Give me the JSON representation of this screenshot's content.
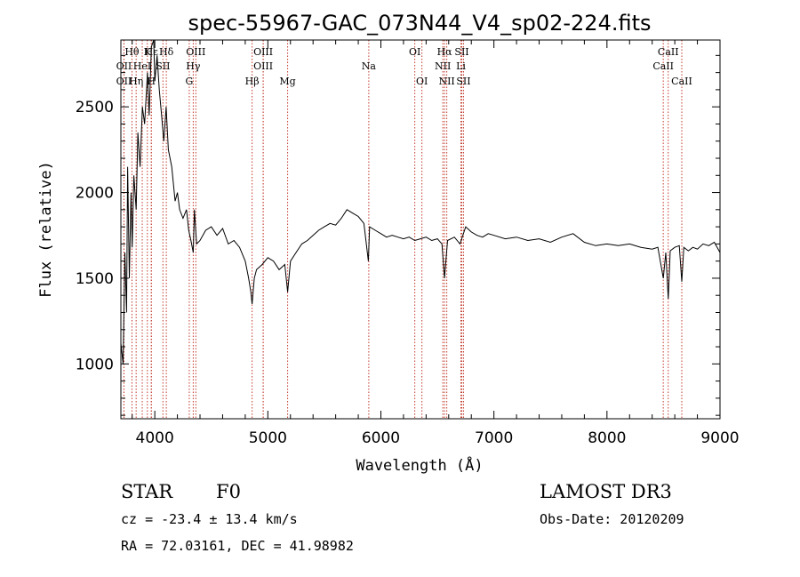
{
  "chart_data": {
    "type": "line",
    "title": "spec-55967-GAC_073N44_V4_sp02-224.fits",
    "xlabel": "Wavelength (Å)",
    "ylabel": "Flux (relative)",
    "xlim": [
      3700,
      9000
    ],
    "ylim": [
      680,
      2890
    ],
    "xticks": [
      4000,
      5000,
      6000,
      7000,
      8000,
      9000
    ],
    "yticks": [
      1000,
      1500,
      2000,
      2500
    ],
    "series": [
      {
        "name": "spectrum",
        "x": [
          3700,
          3720,
          3735,
          3750,
          3760,
          3775,
          3790,
          3800,
          3815,
          3835,
          3850,
          3870,
          3890,
          3910,
          3935,
          3950,
          3970,
          3990,
          4000,
          4020,
          4040,
          4060,
          4080,
          4100,
          4120,
          4150,
          4180,
          4200,
          4220,
          4250,
          4280,
          4300,
          4320,
          4340,
          4350,
          4370,
          4400,
          4450,
          4500,
          4550,
          4600,
          4650,
          4700,
          4750,
          4800,
          4830,
          4850,
          4861,
          4880,
          4900,
          4950,
          5000,
          5050,
          5100,
          5150,
          5175,
          5200,
          5250,
          5300,
          5350,
          5400,
          5450,
          5500,
          5550,
          5600,
          5650,
          5700,
          5750,
          5800,
          5850,
          5889,
          5900,
          5950,
          6000,
          6050,
          6100,
          6150,
          6200,
          6250,
          6300,
          6350,
          6400,
          6450,
          6500,
          6540,
          6563,
          6590,
          6650,
          6700,
          6750,
          6800,
          6850,
          6900,
          6950,
          7000,
          7100,
          7200,
          7300,
          7400,
          7500,
          7600,
          7700,
          7800,
          7900,
          8000,
          8100,
          8200,
          8300,
          8400,
          8450,
          8498,
          8520,
          8542,
          8560,
          8600,
          8640,
          8662,
          8680,
          8720,
          8760,
          8800,
          8850,
          8900,
          8950,
          9000
        ],
        "y": [
          1120,
          1000,
          1650,
          1300,
          2150,
          1500,
          2000,
          1680,
          2100,
          1900,
          2350,
          2150,
          2500,
          2400,
          2700,
          2450,
          2850,
          2900,
          2650,
          2800,
          2600,
          2450,
          2300,
          2500,
          2250,
          2150,
          1950,
          2000,
          1900,
          1850,
          1900,
          1780,
          1720,
          1650,
          1900,
          1700,
          1720,
          1780,
          1800,
          1750,
          1790,
          1700,
          1720,
          1680,
          1600,
          1500,
          1420,
          1350,
          1500,
          1550,
          1580,
          1620,
          1600,
          1550,
          1580,
          1420,
          1600,
          1650,
          1700,
          1720,
          1750,
          1780,
          1800,
          1820,
          1810,
          1850,
          1900,
          1880,
          1860,
          1820,
          1600,
          1800,
          1780,
          1760,
          1740,
          1750,
          1740,
          1730,
          1740,
          1720,
          1730,
          1740,
          1720,
          1730,
          1700,
          1500,
          1720,
          1740,
          1700,
          1800,
          1770,
          1750,
          1740,
          1760,
          1750,
          1730,
          1740,
          1720,
          1730,
          1710,
          1740,
          1760,
          1710,
          1690,
          1700,
          1690,
          1700,
          1680,
          1670,
          1680,
          1500,
          1650,
          1380,
          1660,
          1680,
          1690,
          1480,
          1680,
          1660,
          1680,
          1670,
          1700,
          1690,
          1710,
          1650
        ]
      }
    ],
    "lines": [
      {
        "label": "Hθ",
        "wave": 3798,
        "row": 1
      },
      {
        "label": "OII",
        "wave": 3727,
        "row": 2
      },
      {
        "label": "OII",
        "wave": 3727,
        "row": 3
      },
      {
        "label": "Hη",
        "wave": 3835,
        "row": 3
      },
      {
        "label": "HeI",
        "wave": 3889,
        "row": 2
      },
      {
        "label": "K",
        "wave": 3934,
        "row": 1
      },
      {
        "label": "H",
        "wave": 3969,
        "row": 3
      },
      {
        "label": "Hε",
        "wave": 3970,
        "row": 1
      },
      {
        "label": "SII",
        "wave": 4072,
        "row": 2
      },
      {
        "label": "Hδ",
        "wave": 4102,
        "row": 1
      },
      {
        "label": "OIII",
        "wave": 4363,
        "row": 1
      },
      {
        "label": "Hγ",
        "wave": 4340,
        "row": 2
      },
      {
        "label": "G",
        "wave": 4305,
        "row": 3
      },
      {
        "label": "OIII",
        "wave": 4959,
        "row": 1
      },
      {
        "label": "OIII",
        "wave": 4959,
        "row": 2
      },
      {
        "label": "Hβ",
        "wave": 4861,
        "row": 3
      },
      {
        "label": "Mg",
        "wave": 5175,
        "row": 3
      },
      {
        "label": "Na",
        "wave": 5893,
        "row": 2
      },
      {
        "label": "OI",
        "wave": 6300,
        "row": 1
      },
      {
        "label": "OI",
        "wave": 6363,
        "row": 3
      },
      {
        "label": "Hα",
        "wave": 6563,
        "row": 1
      },
      {
        "label": "NII",
        "wave": 6548,
        "row": 2
      },
      {
        "label": "NII",
        "wave": 6583,
        "row": 3
      },
      {
        "label": "SII",
        "wave": 6716,
        "row": 1
      },
      {
        "label": "Li",
        "wave": 6708,
        "row": 2
      },
      {
        "label": "SII",
        "wave": 6731,
        "row": 3
      },
      {
        "label": "CaII",
        "wave": 8542,
        "row": 1
      },
      {
        "label": "CaII",
        "wave": 8498,
        "row": 2
      },
      {
        "label": "CaII",
        "wave": 8662,
        "row": 3
      }
    ],
    "line_marker_color": "#c0392b"
  },
  "info": {
    "class": "STAR",
    "subclass": "F0",
    "survey": "LAMOST DR3",
    "cz": "cz = -23.4 ± 13.4 km/s",
    "obs_date": "Obs-Date: 20120209",
    "coords": "RA =  72.03161, DEC =  41.98982"
  }
}
